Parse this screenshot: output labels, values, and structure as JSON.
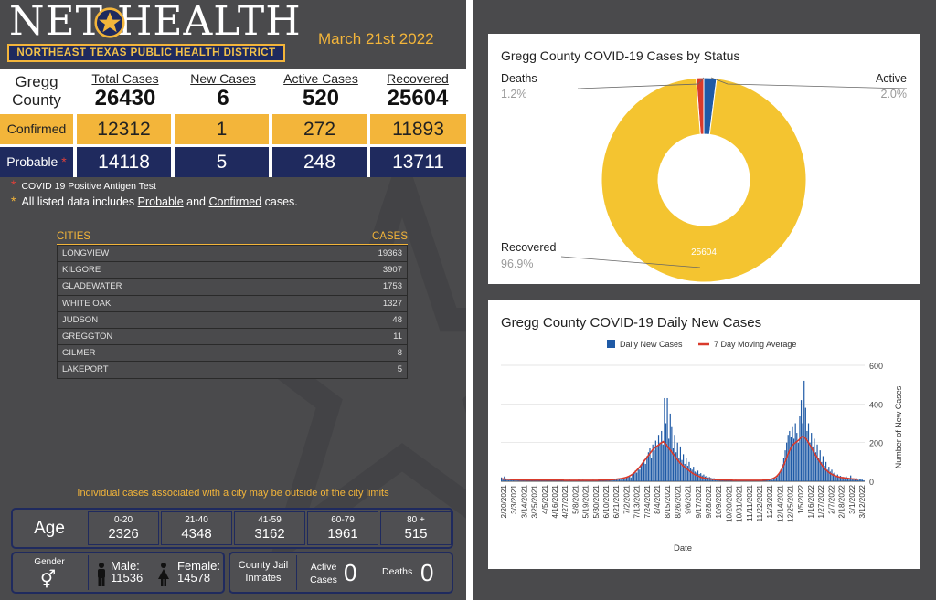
{
  "header": {
    "logo_text": "NET HEALTH",
    "subtitle": "NORTHEAST TEXAS PUBLIC HEALTH DISTRICT",
    "date": "March 21st 2022"
  },
  "summary": {
    "county_line1": "Gregg",
    "county_line2": "County",
    "columns": [
      "Total Cases",
      "New Cases",
      "Active Cases",
      "Recovered"
    ],
    "totals": [
      "26430",
      "6",
      "520",
      "25604"
    ],
    "confirmed_label": "Confirmed",
    "confirmed": [
      "12312",
      "1",
      "272",
      "11893"
    ],
    "probable_label": "Probable",
    "probable": [
      "14118",
      "5",
      "248",
      "13711"
    ]
  },
  "notes": {
    "asterisk": "*",
    "antigen": "COVID 19 Positive Antigen Test",
    "listed_prefix": "All listed data includes",
    "probable_link": "Probable",
    "and": "and",
    "confirmed_link": "Confirmed",
    "listed_suffix": "cases."
  },
  "cities": {
    "header_city": "CITIES",
    "header_cases": "CASES",
    "rows": [
      {
        "name": "LONGVIEW",
        "cases": "19363"
      },
      {
        "name": "KILGORE",
        "cases": "3907"
      },
      {
        "name": "GLADEWATER",
        "cases": "1753"
      },
      {
        "name": "WHITE OAK",
        "cases": "1327"
      },
      {
        "name": "JUDSON",
        "cases": "48"
      },
      {
        "name": "GREGGTON",
        "cases": "11"
      },
      {
        "name": "GILMER",
        "cases": "8"
      },
      {
        "name": "LAKEPORT",
        "cases": "5"
      }
    ],
    "note": "Individual cases associated with a city may be outside of the city limits"
  },
  "age": {
    "label": "Age",
    "groups": [
      {
        "range": "0-20",
        "value": "2326"
      },
      {
        "range": "21-40",
        "value": "4348"
      },
      {
        "range": "41-59",
        "value": "3162"
      },
      {
        "range": "60-79",
        "value": "1961"
      },
      {
        "range": "80 +",
        "value": "515"
      }
    ]
  },
  "gender": {
    "label": "Gender",
    "male_label": "Male:",
    "male": "11536",
    "female_label": "Female:",
    "female": "14578"
  },
  "jail": {
    "label_line1": "County Jail",
    "label_line2": "Inmates",
    "active_line1": "Active",
    "active_line2": "Cases",
    "active": "0",
    "deaths_label": "Deaths",
    "deaths": "0"
  },
  "colors": {
    "navy": "#1f2a5e",
    "gold": "#f3b53a",
    "red": "#e0413a",
    "panel": "#4a4a4c",
    "pie_recovered": "#f4c430",
    "pie_deaths": "#d93a2b",
    "pie_active": "#1f5aa6",
    "bar_blue": "#1f5aa6",
    "line_red": "#d93a2b"
  },
  "chart_data": [
    {
      "type": "pie",
      "title": "Gregg County COVID-19 Cases by Status",
      "categories": [
        "Deaths",
        "Active",
        "Recovered"
      ],
      "values": [
        1.2,
        2.0,
        96.9
      ],
      "value_labels": [
        "1.2%",
        "2.0%",
        "96.9%"
      ],
      "slice_label": "25604",
      "style": "donut"
    },
    {
      "type": "bar",
      "title": "Gregg County COVID-19 Daily New Cases",
      "legend": [
        "Daily New Cases",
        "7 Day Moving Average"
      ],
      "legend_position": "top",
      "xlabel": "Date",
      "ylabel": "Number of New Cases",
      "ylim": [
        0,
        600
      ],
      "yticks": [
        0,
        200,
        400,
        600
      ],
      "x_tick_labels": [
        "2/20/2021",
        "3/3/2021",
        "3/14/2021",
        "3/25/2021",
        "4/5/2021",
        "4/16/2021",
        "4/27/2021",
        "5/8/2021",
        "5/19/2021",
        "5/30/2021",
        "6/10/2021",
        "6/21/2021",
        "7/2/2021",
        "7/13/2021",
        "7/24/2021",
        "8/4/2021",
        "8/15/2021",
        "8/26/2021",
        "9/6/2021",
        "9/17/2021",
        "9/28/2021",
        "10/9/2021",
        "10/20/2021",
        "10/31/2021",
        "11/11/2021",
        "11/22/2021",
        "12/3/2021",
        "12/14/2021",
        "12/25/2021",
        "1/5/2022",
        "1/16/2022",
        "1/27/2022",
        "2/7/2022",
        "2/18/2022",
        "3/1/2022",
        "3/12/2022"
      ],
      "series": [
        {
          "name": "Daily New Cases",
          "type": "bar",
          "values": [
            20,
            10,
            25,
            8,
            14,
            6,
            12,
            8,
            5,
            10,
            12,
            7,
            9,
            4,
            10,
            6,
            8,
            5,
            7,
            4,
            6,
            8,
            3,
            5,
            9,
            4,
            7,
            3,
            6,
            8,
            4,
            5,
            10,
            3,
            6,
            8,
            4,
            7,
            5,
            6,
            9,
            4,
            5,
            7,
            3,
            6,
            4,
            8,
            5,
            3,
            7,
            4,
            6,
            9,
            3,
            5,
            8,
            4,
            6,
            3,
            7,
            5,
            4,
            8,
            3,
            6,
            5,
            7,
            4,
            9,
            6,
            5,
            8,
            4,
            7,
            10,
            6,
            8,
            12,
            9,
            11,
            14,
            10,
            16,
            18,
            12,
            22,
            25,
            30,
            20,
            35,
            40,
            55,
            45,
            70,
            60,
            80,
            95,
            110,
            90,
            130,
            150,
            170,
            120,
            190,
            160,
            210,
            180,
            240,
            200,
            260,
            190,
            430,
            300,
            430,
            220,
            350,
            280,
            170,
            240,
            150,
            200,
            120,
            180,
            110,
            140,
            90,
            120,
            80,
            100,
            70,
            60,
            75,
            50,
            45,
            55,
            38,
            42,
            30,
            35,
            25,
            28,
            20,
            22,
            18,
            15,
            16,
            12,
            14,
            10,
            12,
            8,
            10,
            7,
            9,
            6,
            8,
            5,
            7,
            6,
            5,
            8,
            4,
            6,
            5,
            7,
            4,
            5,
            6,
            4,
            5,
            3,
            6,
            4,
            5,
            3,
            4,
            5,
            3,
            6,
            4,
            5,
            7,
            9,
            6,
            10,
            8,
            12,
            15,
            20,
            30,
            45,
            60,
            90,
            120,
            160,
            200,
            240,
            260,
            230,
            280,
            220,
            300,
            250,
            200,
            340,
            420,
            300,
            520,
            380,
            260,
            300,
            200,
            250,
            180,
            220,
            150,
            190,
            120,
            160,
            100,
            130,
            80,
            100,
            60,
            75,
            50,
            60,
            40,
            45,
            30,
            35,
            25,
            28,
            20,
            22,
            18,
            25,
            15,
            12,
            30,
            10,
            14,
            8,
            16,
            6,
            12,
            10,
            8,
            5
          ]
        },
        {
          "name": "7 Day Moving Average",
          "type": "line",
          "values": [
            12,
            12,
            11,
            11,
            10,
            10,
            9,
            9,
            8,
            8,
            8,
            8,
            7,
            7,
            7,
            7,
            7,
            6,
            6,
            6,
            6,
            6,
            6,
            6,
            6,
            6,
            6,
            6,
            6,
            6,
            6,
            6,
            6,
            6,
            6,
            6,
            6,
            6,
            6,
            6,
            6,
            6,
            6,
            5,
            5,
            5,
            5,
            5,
            5,
            5,
            5,
            5,
            5,
            5,
            5,
            5,
            5,
            5,
            5,
            5,
            5,
            5,
            5,
            5,
            5,
            5,
            5,
            6,
            6,
            6,
            6,
            6,
            7,
            7,
            7,
            8,
            8,
            9,
            10,
            11,
            12,
            13,
            14,
            15,
            17,
            19,
            21,
            24,
            28,
            32,
            37,
            43,
            50,
            58,
            66,
            75,
            85,
            95,
            105,
            115,
            125,
            135,
            145,
            155,
            165,
            172,
            178,
            183,
            188,
            195,
            200,
            205,
            198,
            190,
            180,
            170,
            160,
            150,
            140,
            130,
            120,
            110,
            100,
            92,
            85,
            78,
            72,
            66,
            60,
            54,
            48,
            43,
            38,
            34,
            30,
            27,
            24,
            21,
            19,
            17,
            15,
            14,
            13,
            12,
            11,
            10,
            9,
            9,
            8,
            8,
            7,
            7,
            7,
            6,
            6,
            6,
            6,
            6,
            6,
            5,
            5,
            5,
            5,
            5,
            5,
            5,
            5,
            5,
            5,
            5,
            5,
            5,
            5,
            5,
            5,
            5,
            5,
            5,
            5,
            5,
            6,
            6,
            7,
            8,
            9,
            11,
            13,
            16,
            20,
            26,
            34,
            44,
            56,
            70,
            86,
            104,
            124,
            144,
            160,
            174,
            186,
            194,
            200,
            206,
            212,
            220,
            230,
            232,
            228,
            220,
            210,
            198,
            185,
            172,
            158,
            145,
            132,
            120,
            108,
            96,
            85,
            75,
            66,
            58,
            51,
            45,
            40,
            36,
            32,
            29,
            26,
            24,
            22,
            20,
            19,
            18,
            17,
            16,
            15,
            14,
            13,
            12,
            12,
            11,
            10,
            10
          ]
        }
      ]
    }
  ]
}
